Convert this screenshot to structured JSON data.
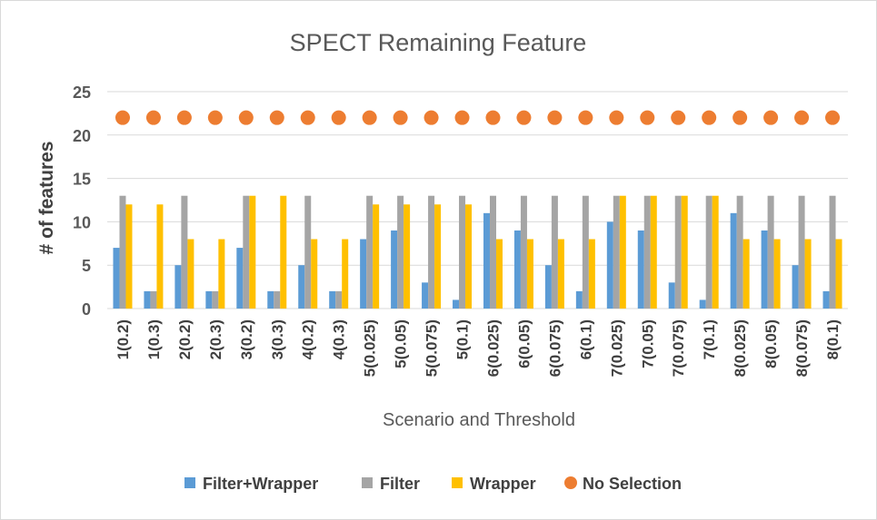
{
  "chart_data": {
    "type": "bar",
    "title": "SPECT Remaining Feature",
    "xlabel": "Scenario and Threshold",
    "ylabel": "# of features",
    "ylim": [
      0,
      25
    ],
    "yticks": [
      0,
      5,
      10,
      15,
      20,
      25
    ],
    "grid": true,
    "legend_position": "bottom",
    "categories": [
      "1(0.2)",
      "1(0.3)",
      "2(0.2)",
      "2(0.3)",
      "3(0.2)",
      "3(0.3)",
      "4(0.2)",
      "4(0.3)",
      "5(0.025)",
      "5(0.05)",
      "5(0.075)",
      "5(0.1)",
      "6(0.025)",
      "6(0.05)",
      "6(0.075)",
      "6(0.1)",
      "7(0.025)",
      "7(0.05)",
      "7(0.075)",
      "7(0.1)",
      "8(0.025)",
      "8(0.05)",
      "8(0.075)",
      "8(0.1)"
    ],
    "series": [
      {
        "name": "Filter+Wrapper",
        "kind": "bar",
        "color": "#5b9bd5",
        "values": [
          7,
          2,
          5,
          2,
          7,
          2,
          5,
          2,
          8,
          9,
          3,
          1,
          11,
          9,
          5,
          2,
          10,
          9,
          3,
          1,
          11,
          9,
          5,
          2
        ]
      },
      {
        "name": "Filter",
        "kind": "bar",
        "color": "#a5a5a5",
        "values": [
          13,
          2,
          13,
          2,
          13,
          2,
          13,
          2,
          13,
          13,
          13,
          13,
          13,
          13,
          13,
          13,
          13,
          13,
          13,
          13,
          13,
          13,
          13,
          13
        ]
      },
      {
        "name": "Wrapper",
        "kind": "bar",
        "color": "#ffc000",
        "values": [
          12,
          12,
          8,
          8,
          13,
          13,
          8,
          8,
          12,
          12,
          12,
          12,
          8,
          8,
          8,
          8,
          13,
          13,
          13,
          13,
          8,
          8,
          8,
          8
        ]
      },
      {
        "name": "No Selection",
        "kind": "marker",
        "color": "#ed7d31",
        "values": [
          22,
          22,
          22,
          22,
          22,
          22,
          22,
          22,
          22,
          22,
          22,
          22,
          22,
          22,
          22,
          22,
          22,
          22,
          22,
          22,
          22,
          22,
          22,
          22
        ]
      }
    ]
  }
}
